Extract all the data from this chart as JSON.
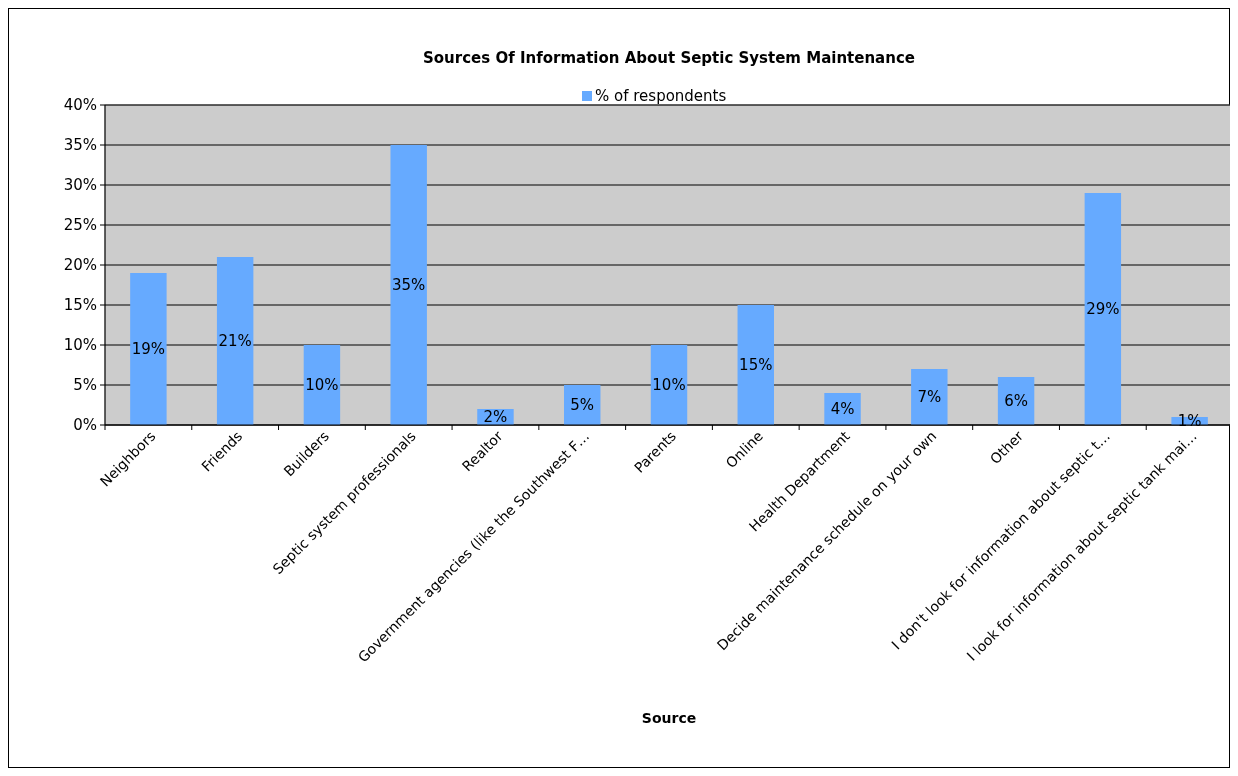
{
  "chart_data": {
    "type": "bar",
    "title": "Sources Of Information About Septic System Maintenance",
    "xlabel": "Source",
    "categories": [
      "Neighbors",
      "Friends",
      "Builders",
      "Septic system professionals",
      "Realtor",
      "Government agencies (like the Southwest F…",
      "Parents",
      "Online",
      "Health Department",
      "Decide maintenance schedule on your own",
      "Other",
      "I don't look for information about septic t…",
      "I look for information about septic tank mai…"
    ],
    "series": [
      {
        "name": "% of respondents",
        "color": "#66aaff",
        "values": [
          19,
          21,
          10,
          35,
          2,
          5,
          10,
          15,
          4,
          7,
          6,
          29,
          1
        ],
        "value_labels": [
          "19%",
          "21%",
          "10%",
          "35%",
          "2%",
          "5%",
          "10%",
          "15%",
          "4%",
          "7%",
          "6%",
          "29%",
          "1%"
        ]
      }
    ],
    "ylim": [
      0,
      40
    ],
    "yticks": [
      {
        "value": 0,
        "label": "0%"
      },
      {
        "value": 5,
        "label": "5%"
      },
      {
        "value": 10,
        "label": "10%"
      },
      {
        "value": 15,
        "label": "15%"
      },
      {
        "value": 20,
        "label": "20%"
      },
      {
        "value": 25,
        "label": "25%"
      },
      {
        "value": 30,
        "label": "30%"
      },
      {
        "value": 35,
        "label": "35%"
      },
      {
        "value": 40,
        "label": "40%"
      }
    ],
    "grid": "y",
    "legend": "top"
  }
}
